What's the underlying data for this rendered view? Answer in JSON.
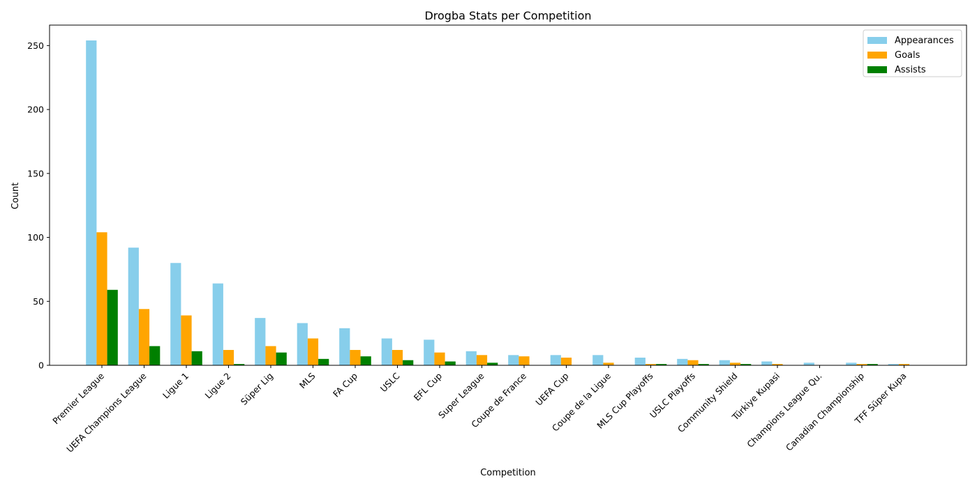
{
  "chart_data": {
    "type": "bar",
    "title": "Drogba Stats per Competition",
    "xlabel": "Competition",
    "ylabel": "Count",
    "ylim": [
      0,
      266
    ],
    "yticks": [
      0,
      50,
      100,
      150,
      200,
      250
    ],
    "legend_position": "top-right",
    "grid": false,
    "categories": [
      "Premier League",
      "UEFA Champions League",
      "Ligue 1",
      "Ligue 2",
      "Süper Lig",
      "MLS",
      "FA Cup",
      "USLC",
      "EFL Cup",
      "Super League",
      "Coupe de France",
      "UEFA Cup",
      "Coupe de la Ligue",
      "MLS Cup Playoffs",
      "USLC Playoffs",
      "Community Shield",
      "Türkiye Kupasi",
      "Champions League Qu.",
      "Canadian Championship",
      "TFF Süper Kupa"
    ],
    "series": [
      {
        "name": "Appearances",
        "color": "#87ceeb",
        "values": [
          254,
          92,
          80,
          64,
          37,
          33,
          29,
          21,
          20,
          11,
          8,
          8,
          8,
          6,
          5,
          4,
          3,
          2,
          2,
          1
        ]
      },
      {
        "name": "Goals",
        "color": "#ffa500",
        "values": [
          104,
          44,
          39,
          12,
          15,
          21,
          12,
          12,
          10,
          8,
          7,
          6,
          2,
          1,
          4,
          2,
          1,
          0,
          1,
          1
        ]
      },
      {
        "name": "Assists",
        "color": "#008000",
        "values": [
          59,
          15,
          11,
          1,
          10,
          5,
          7,
          4,
          3,
          2,
          0,
          0,
          0,
          1,
          1,
          1,
          0,
          0,
          1,
          0
        ]
      }
    ]
  }
}
